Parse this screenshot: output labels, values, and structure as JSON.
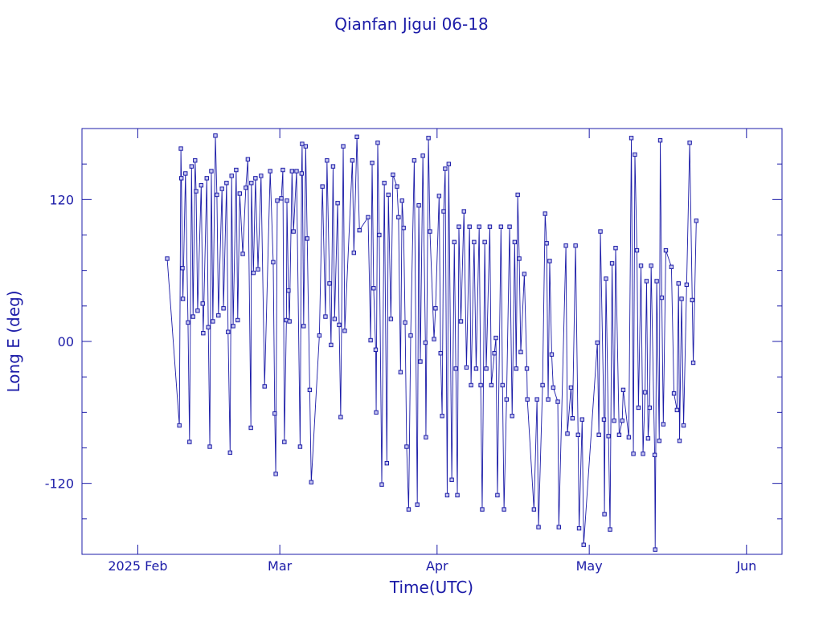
{
  "chart_data": {
    "type": "line",
    "title": "Qianfan Jigui 06-18",
    "x_label": "Time(UTC)",
    "y_label": "Long E (deg)",
    "color": "#1c1ca8",
    "markers": true,
    "grid": false,
    "xlim": [
      21,
      159
    ],
    "xticks": [
      {
        "value": 32,
        "label": "2025 Feb"
      },
      {
        "value": 60,
        "label": "Mar"
      },
      {
        "value": 91,
        "label": "Apr"
      },
      {
        "value": 121,
        "label": "May"
      },
      {
        "value": 152,
        "label": "Jun"
      }
    ],
    "ylim": [
      -180,
      180
    ],
    "yticks": [
      -120,
      {
        "value": 0,
        "label": "00"
      },
      120
    ],
    "yminorticks": [
      -150,
      -90,
      -60,
      -30,
      30,
      60,
      90,
      150
    ],
    "x": [
      37.8,
      40.2,
      40.5,
      40.6,
      40.8,
      40.9,
      41.4,
      41.9,
      42.2,
      42.6,
      42.9,
      43.3,
      43.5,
      43.8,
      44.5,
      44.8,
      44.9,
      45.6,
      45.9,
      46.2,
      46.5,
      46.8,
      47.3,
      47.6,
      47.9,
      48.6,
      48.9,
      49.5,
      49.8,
      50.2,
      50.5,
      50.8,
      51.4,
      51.7,
      52.1,
      52.7,
      53.3,
      53.7,
      54.3,
      54.4,
      54.8,
      55.2,
      55.7,
      56.3,
      57.0,
      58.1,
      58.7,
      59.0,
      59.2,
      59.5,
      60.3,
      60.6,
      60.9,
      61.3,
      61.4,
      61.7,
      61.9,
      62.4,
      62.7,
      63.3,
      64.0,
      64.3,
      64.4,
      64.7,
      65.1,
      65.4,
      65.9,
      66.2,
      67.8,
      68.4,
      69.0,
      69.3,
      69.8,
      70.1,
      70.5,
      70.8,
      71.4,
      71.7,
      72.0,
      72.5,
      72.8,
      74.3,
      74.6,
      75.2,
      75.7,
      77.4,
      77.9,
      78.2,
      78.5,
      78.9,
      79.0,
      79.3,
      79.6,
      80.1,
      80.6,
      81.1,
      81.4,
      81.9,
      82.3,
      83.1,
      83.4,
      83.8,
      84.1,
      84.4,
      84.7,
      85.0,
      85.4,
      85.8,
      86.5,
      87.1,
      87.4,
      87.7,
      88.2,
      88.7,
      88.8,
      89.3,
      89.6,
      90.4,
      90.7,
      91.4,
      91.7,
      92.0,
      92.3,
      92.6,
      93.0,
      93.3,
      93.9,
      94.4,
      94.7,
      95.0,
      95.3,
      95.7,
      96.3,
      96.8,
      97.4,
      97.7,
      98.3,
      98.7,
      99.3,
      99.6,
      99.9,
      100.4,
      100.7,
      101.4,
      101.7,
      102.3,
      102.6,
      102.9,
      103.6,
      103.9,
      104.2,
      104.7,
      105.3,
      105.8,
      106.3,
      106.6,
      106.9,
      107.2,
      107.5,
      108.2,
      108.7,
      108.8,
      110.1,
      110.7,
      111.0,
      111.8,
      112.3,
      112.6,
      112.9,
      113.2,
      113.6,
      113.9,
      114.8,
      115.0,
      116.4,
      116.7,
      117.4,
      117.7,
      118.3,
      118.8,
      119.0,
      119.6,
      119.9,
      122.6,
      122.9,
      123.2,
      123.9,
      124.0,
      124.3,
      124.8,
      125.1,
      125.5,
      125.9,
      126.2,
      126.9,
      127.5,
      127.7,
      128.8,
      129.3,
      129.7,
      130.0,
      130.4,
      130.7,
      131.2,
      131.6,
      132.0,
      132.3,
      132.6,
      132.9,
      133.2,
      133.9,
      134.0,
      134.3,
      134.8,
      135.0,
      135.3,
      135.6,
      136.1,
      137.2,
      137.7,
      138.3,
      138.6,
      138.8,
      139.2,
      139.6,
      140.2,
      140.8,
      141.3,
      141.5,
      142.1
    ],
    "values": [
      70,
      -71,
      163,
      138,
      62,
      36,
      142,
      16,
      -85,
      148,
      21,
      153,
      127,
      26,
      132,
      32,
      7,
      138,
      12,
      -89,
      144,
      17,
      174,
      124,
      22,
      129,
      28,
      134,
      8,
      -94,
      140,
      13,
      145,
      18,
      125,
      74,
      130,
      154,
      -73,
      134,
      58,
      138,
      61,
      140,
      -38,
      144,
      67,
      -61,
      -112,
      119,
      121,
      145,
      -85,
      18,
      119,
      43,
      17,
      144,
      93,
      144,
      -89,
      142,
      167,
      13,
      165,
      87,
      -41,
      -119,
      5,
      131,
      21,
      153,
      49,
      -3,
      148,
      19,
      117,
      14,
      -64,
      165,
      9,
      153,
      75,
      173,
      94,
      105,
      1,
      151,
      45,
      -7,
      -60,
      168,
      90,
      -121,
      134,
      -103,
      124,
      19,
      141,
      131,
      105,
      -26,
      119,
      96,
      16,
      -89,
      -142,
      5,
      153,
      -138,
      115,
      -17,
      157,
      -1,
      -81,
      172,
      93,
      2,
      28,
      123,
      -10,
      -63,
      110,
      146,
      -130,
      150,
      -117,
      84,
      -23,
      -130,
      97,
      17,
      110,
      -22,
      97,
      -37,
      84,
      -23,
      97,
      -37,
      -142,
      84,
      -23,
      97,
      -37,
      -10,
      3,
      -130,
      97,
      -37,
      -142,
      -49,
      97,
      -63,
      84,
      -23,
      124,
      70,
      -9,
      57,
      -23,
      -49,
      -142,
      -49,
      -157,
      -37,
      108,
      83,
      -49,
      68,
      -11,
      -39,
      -51,
      -157,
      81,
      -78,
      -39,
      -65,
      81,
      -79,
      -158,
      -66,
      -172,
      -1,
      -79,
      93,
      -66,
      -146,
      53,
      -80,
      -159,
      66,
      -67,
      79,
      -79,
      -67,
      -41,
      -81,
      172,
      -95,
      158,
      77,
      -56,
      64,
      -95,
      -43,
      51,
      -82,
      -56,
      64,
      -96,
      -176,
      51,
      -84,
      170,
      37,
      -70,
      77,
      63,
      -44,
      -58,
      49,
      -84,
      36,
      -71,
      48,
      168,
      35,
      -18,
      102
    ]
  }
}
